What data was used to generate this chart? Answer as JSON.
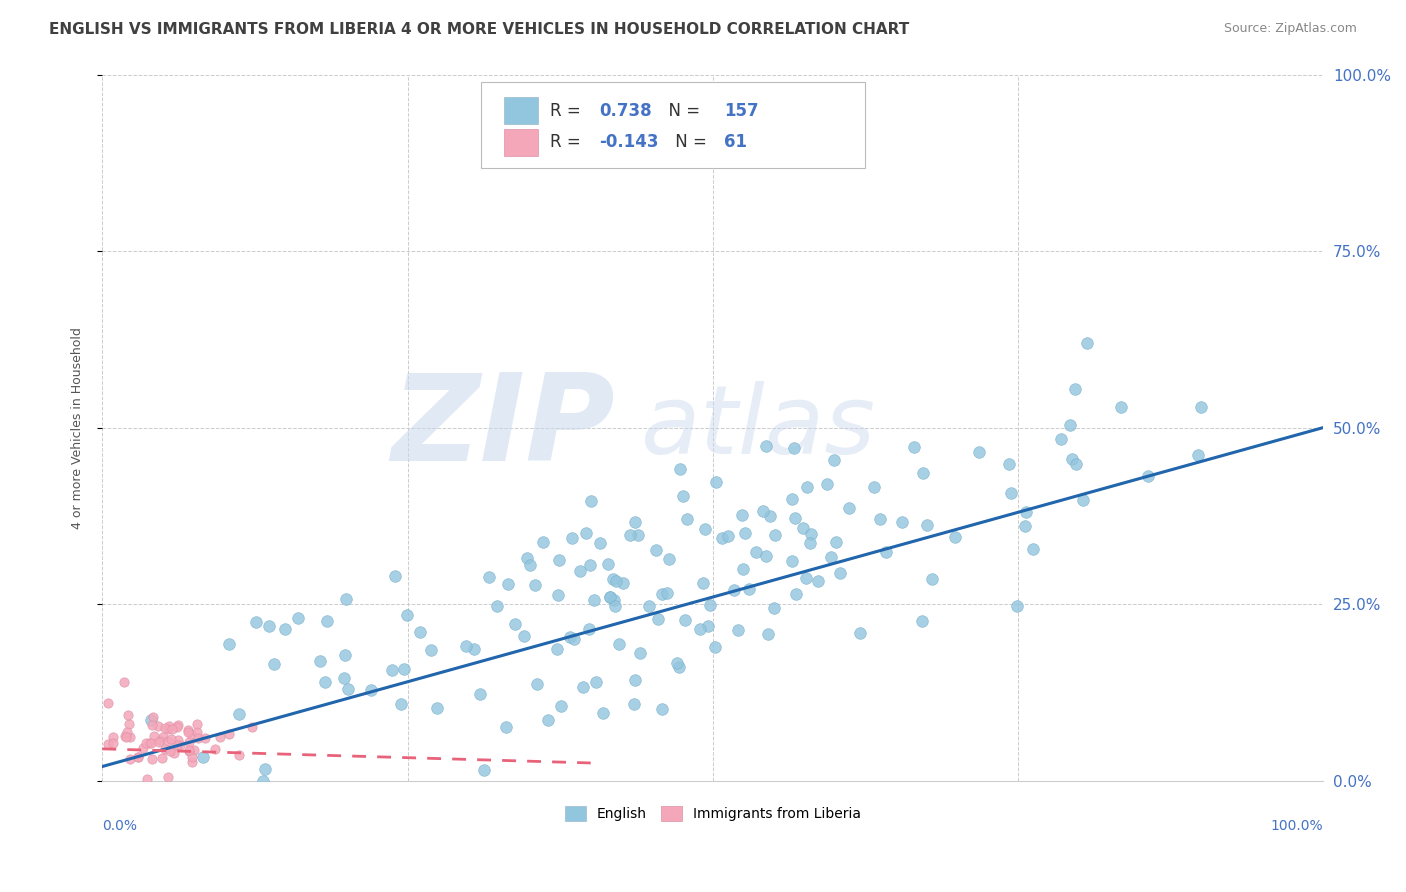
{
  "title": "ENGLISH VS IMMIGRANTS FROM LIBERIA 4 OR MORE VEHICLES IN HOUSEHOLD CORRELATION CHART",
  "source": "Source: ZipAtlas.com",
  "ylabel": "4 or more Vehicles in Household",
  "blue_R": 0.738,
  "blue_N": 157,
  "pink_R": -0.143,
  "pink_N": 61,
  "blue_color": "#92C5DE",
  "pink_color": "#F4A7B9",
  "blue_line_color": "#2166AC",
  "pink_line_color": "#E8627A",
  "watermark_zip": "ZIP",
  "watermark_atlas": "atlas",
  "watermark_color_zip": "#C8D8EC",
  "watermark_color_atlas": "#C8D8EC",
  "legend_label_blue": "English",
  "legend_label_pink": "Immigrants from Liberia",
  "title_fontsize": 11,
  "ytick_labels": [
    "0.0%",
    "25.0%",
    "50.0%",
    "75.0%",
    "100.0%"
  ],
  "ytick_values": [
    0.0,
    0.25,
    0.5,
    0.75,
    1.0
  ],
  "xtick_values": [
    0.0,
    0.25,
    0.5,
    0.75,
    1.0
  ],
  "blue_line_x0": 0.0,
  "blue_line_x1": 1.0,
  "blue_line_y0": 0.02,
  "blue_line_y1": 0.5,
  "pink_line_x0": 0.0,
  "pink_line_x1": 0.4,
  "pink_line_y0": 0.045,
  "pink_line_y1": 0.025
}
